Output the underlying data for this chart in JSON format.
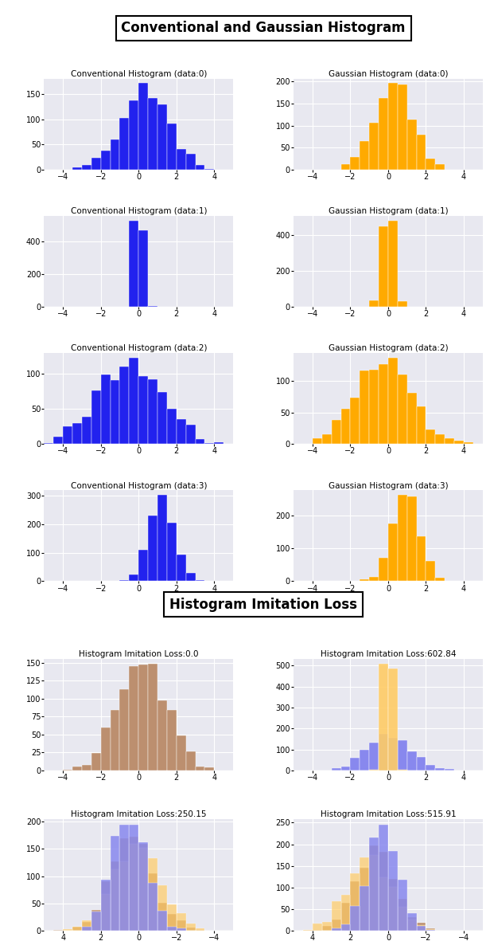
{
  "fig_title1": "Conventional and Gaussian Histogram",
  "fig_title2": "Histogram Imitation Loss",
  "conv_titles": [
    "Conventional Histogram (data:0)",
    "Conventional Histogram (data:1)",
    "Conventional Histogram (data:2)",
    "Conventional Histogram (data:3)"
  ],
  "gauss_titles": [
    "Gaussian Histogram (data:0)",
    "Gaussian Histogram (data:1)",
    "Gaussian Histogram (data:2)",
    "Gaussian Histogram (data:3)"
  ],
  "loss_titles": [
    "Histogram Imitation Loss:0.0",
    "Histogram Imitation Loss:602.84",
    "Histogram Imitation Loss:250.15",
    "Histogram Imitation Loss:515.91"
  ],
  "blue_color": "#2222ee",
  "blue_light": "#8888ee",
  "orange_color": "#ffaa00",
  "orange_light": "#ffcc66",
  "brown_color": "#bc8f6f",
  "bg_color": "#e8e8f0",
  "n_bins": 20,
  "conv_params": [
    {
      "mean": 0.3,
      "std": 1.3,
      "n": 1000,
      "seed": 1
    },
    {
      "mean": 0.0,
      "std": 0.18,
      "n": 1000,
      "seed": 2
    },
    {
      "mean": -0.5,
      "std": 1.7,
      "n": 1000,
      "seed": 3
    },
    {
      "mean": 1.2,
      "std": 0.7,
      "n": 1000,
      "seed": 4
    }
  ],
  "gauss_params": [
    {
      "mean": 0.3,
      "std": 1.0,
      "n": 1000,
      "seed": 11
    },
    {
      "mean": 0.0,
      "std": 0.28,
      "n": 1000,
      "seed": 12
    },
    {
      "mean": -0.2,
      "std": 1.5,
      "n": 1000,
      "seed": 13
    },
    {
      "mean": 1.0,
      "std": 0.7,
      "n": 1000,
      "seed": 14
    }
  ],
  "loss0_params": {
    "mean": 0.2,
    "std": 1.3,
    "n": 1000,
    "seed": 20
  },
  "loss1_orange_params": {
    "mean": 0.0,
    "std": 0.18,
    "n": 1000,
    "seed": 21
  },
  "loss1_blue_params": {
    "mean": 0.0,
    "std": 1.1,
    "n": 1000,
    "seed": 22
  },
  "loss2_orange_params": {
    "mean": 0.2,
    "std": 1.3,
    "n": 1000,
    "seed": 23
  },
  "loss2_blue_params": {
    "mean": 0.5,
    "std": 0.9,
    "n": 1000,
    "seed": 24
  },
  "loss2_brown_params": {
    "mean": 0.3,
    "std": 1.1,
    "n": 1000,
    "seed": 25
  },
  "loss3_orange_params": {
    "mean": 1.0,
    "std": 1.2,
    "n": 1000,
    "seed": 26
  },
  "loss3_blue_params": {
    "mean": 0.3,
    "std": 0.8,
    "n": 1000,
    "seed": 27
  },
  "loss3_brown_params": {
    "mean": 0.7,
    "std": 1.1,
    "n": 1000,
    "seed": 28
  }
}
